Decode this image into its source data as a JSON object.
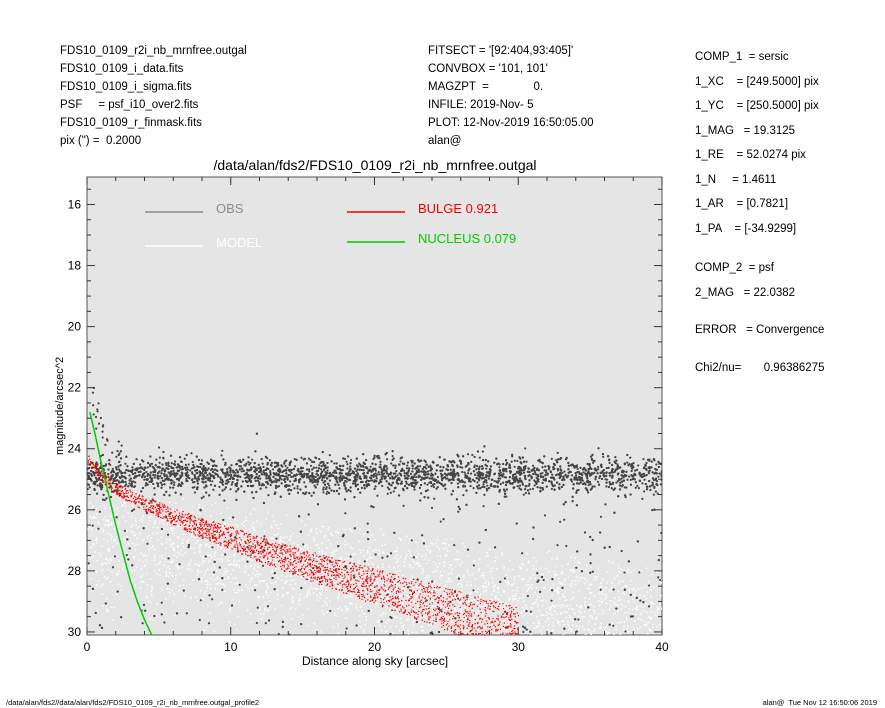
{
  "header_left": [
    "FDS10_0109_r2i_nb_mrnfree.outgal",
    "FDS10_0109_i_data.fits",
    "FDS10_0109_i_sigma.fits",
    "PSF     = psf_i10_over2.fits",
    "FDS10_0109_r_finmask.fits",
    "pix (\") =  0.2000"
  ],
  "header_mid": [
    "FITSECT = '[92:404,93:405]'",
    "CONVBOX = '101, 101'",
    "MAGZPT  =              0.",
    "INFILE: 2019-Nov- 5",
    "PLOT: 12-Nov-2019 16:50:05.00",
    "alan@"
  ],
  "header_right": [
    "COMP_1  = sersic",
    "1_XC    = [249.5000] pix",
    "1_YC    = [250.5000] pix",
    "1_MAG   = 19.3125",
    "1_RE    = 52.0274 pix",
    "1_N     = 1.4611",
    "1_AR    = [0.7821]",
    "1_PA    = [-34.9299]",
    "COMP_2  = psf",
    "2_MAG   = 22.0382",
    "ERROR   = Convergence",
    "Chi2/nu=       0.96386275"
  ],
  "footer_left": "/data/alan/fds2//data/alan/fds2/FDS10_0109_r2i_nb_mrnfree.outgal_profile2",
  "footer_right": "alan@  Tue Nov 12 16:50:06 2019",
  "chart_data": {
    "type": "scatter",
    "title": "/data/alan/fds2/FDS10_0109_r2i_nb_mrnfree.outgal",
    "xlabel": "Distance along sky [arcsec]",
    "ylabel": "magnitude/arcsec^2",
    "xlim": [
      0,
      40
    ],
    "ylim": [
      30.1,
      15.1
    ],
    "x_ticks": [
      0,
      10,
      20,
      30,
      40
    ],
    "y_ticks": [
      16,
      18,
      20,
      22,
      24,
      26,
      28,
      30
    ],
    "background": "#e5e5e5",
    "legend": [
      {
        "label": "OBS",
        "color": "#8c8c8c"
      },
      {
        "label": "MODEL",
        "color": "#ffffff"
      },
      {
        "label": "BULGE  0.921",
        "color": "#ee0000"
      },
      {
        "label": "NUCLEUS  0.079",
        "color": "#00cc00"
      }
    ],
    "series": [
      {
        "name": "OBS",
        "kind": "points",
        "color": "#444444",
        "x_range": [
          0,
          40
        ],
        "mag_center": 24.8,
        "note_points": [
          [
            0.3,
            22.6
          ],
          [
            0.5,
            23.1
          ],
          [
            1.0,
            23.6
          ],
          [
            2.0,
            24.1
          ],
          [
            5,
            24.4
          ],
          [
            10,
            24.6
          ],
          [
            20,
            24.7
          ],
          [
            30,
            24.8
          ],
          [
            40,
            24.9
          ]
        ]
      },
      {
        "name": "MODEL",
        "kind": "points",
        "color": "#ffffff",
        "x_range": [
          0,
          40
        ],
        "mag_center": 26.0
      },
      {
        "name": "BULGE  0.921",
        "kind": "band",
        "color": "#ee0000",
        "x": [
          0,
          1,
          2,
          4,
          6,
          8,
          10,
          12,
          14,
          16,
          18,
          20,
          22,
          24,
          26,
          28,
          30
        ],
        "y": [
          24.3,
          24.9,
          25.3,
          25.8,
          26.2,
          26.6,
          26.9,
          27.3,
          27.6,
          27.9,
          28.2,
          28.5,
          28.8,
          29.1,
          29.4,
          29.7,
          30.0
        ]
      },
      {
        "name": "NUCLEUS  0.079",
        "kind": "line",
        "color": "#00cc00",
        "x": [
          0.2,
          0.6,
          1.0,
          1.5,
          2.0,
          2.5,
          3.0,
          3.5,
          4.0,
          4.5
        ],
        "y": [
          22.8,
          23.6,
          24.5,
          25.5,
          26.5,
          27.4,
          28.3,
          29.0,
          29.6,
          30.1
        ]
      }
    ]
  }
}
